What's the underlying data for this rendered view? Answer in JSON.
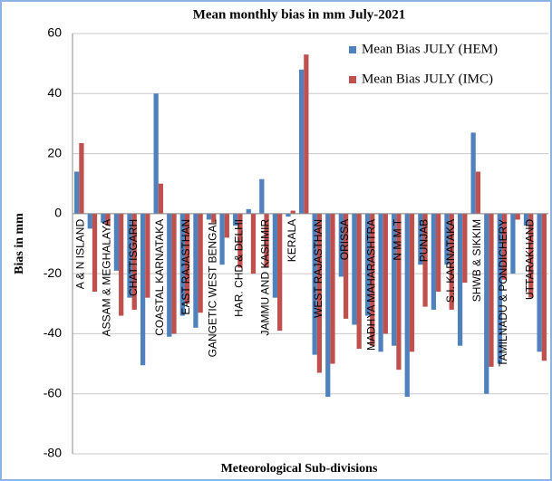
{
  "chart_data": {
    "type": "bar",
    "title": "Mean monthly bias in mm July-2021",
    "x_label": "Meteorological Sub-divisions",
    "y_label": "Bias in mm",
    "categories": [
      "A & N ISLAND",
      null,
      "ASSAM & MEGHALAYA",
      null,
      "CHATTISGARH",
      null,
      "COASTAL KARNATAKA",
      null,
      "EAST RAJASTHAN",
      null,
      "GANGETIC WEST BENGAL",
      null,
      "HAR. CHD & DELHI",
      null,
      "JAMMU AND KASHMIR",
      null,
      "KERALA",
      null,
      "WEST RAJASTHAN",
      null,
      "ORISSA",
      null,
      "MADHYA MAHARASHTRA",
      null,
      "N M M T",
      null,
      "PUNJAB",
      null,
      "S.I. KARNATAKA",
      null,
      "SHWB & SIKKIM",
      null,
      "TAMILNADU & PONDICHERY",
      null,
      "UTTARAKHAND",
      null
    ],
    "series": [
      {
        "name": "Mean Bias JULY (HEM)",
        "color": "#4f81bd",
        "values": [
          14,
          -5,
          -3,
          -19,
          -28,
          -50.5,
          40,
          -41,
          -34,
          -38,
          -2,
          -17,
          -4,
          1.5,
          11.5,
          -28,
          -1,
          48,
          -47,
          -61,
          -21,
          -37,
          -34,
          -46,
          -44,
          -61,
          -17,
          -32,
          -17,
          -44,
          27,
          -60,
          -50,
          -20,
          -4,
          -46
        ]
      },
      {
        "name": "Mean Bias JULY (IMC)",
        "color": "#c0504d",
        "values": [
          23.5,
          -26,
          -4,
          -34,
          -32,
          -28,
          10,
          -40,
          -30,
          -33,
          -3,
          -8,
          -18,
          -20,
          -18,
          -39,
          1,
          53,
          -53,
          -50,
          -35,
          -45,
          -44,
          -40,
          -52,
          -46,
          -31,
          -26,
          -32,
          -23,
          14,
          -51,
          -22,
          -2,
          -28,
          -49
        ]
      }
    ],
    "ylim": [
      -80,
      60
    ],
    "yticks": [
      -80,
      -60,
      -40,
      -20,
      0,
      20,
      40,
      60
    ],
    "grid": true,
    "legend": "top-right"
  }
}
